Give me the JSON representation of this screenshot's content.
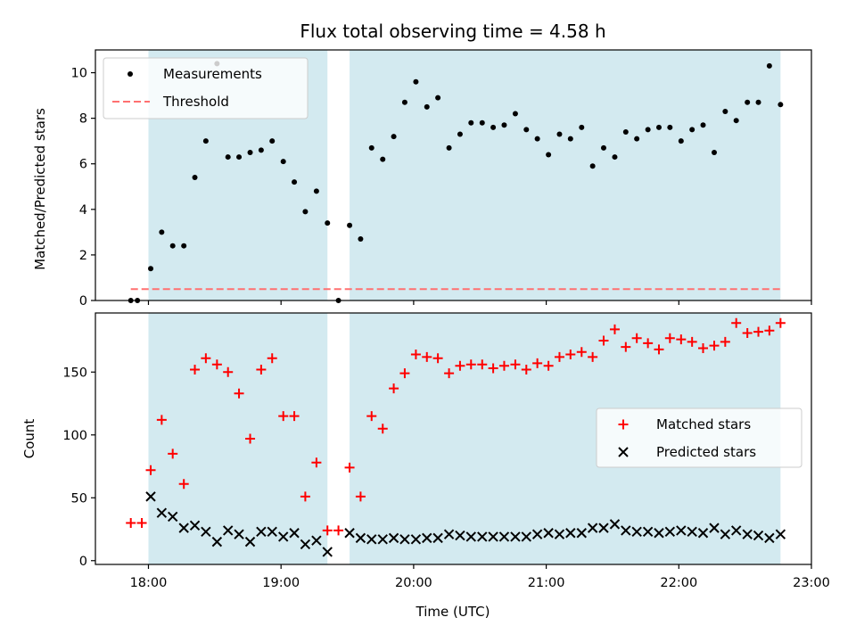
{
  "chart_data": [
    {
      "type": "scatter",
      "title": "Flux total observing time = 4.58 h",
      "xlabel": "",
      "ylabel": "Matched/Predicted stars",
      "xlim": [
        17.6,
        23.0
      ],
      "ylim": [
        0,
        11
      ],
      "yticks": [
        0,
        2,
        4,
        6,
        8,
        10
      ],
      "legend_position": "upper-left",
      "series": [
        {
          "name": "Measurements",
          "marker": "dot",
          "color": "#000000",
          "x": [
            17.867,
            17.917,
            18.017,
            18.1,
            18.183,
            18.267,
            18.35,
            18.433,
            18.517,
            18.6,
            18.683,
            18.767,
            18.85,
            18.933,
            19.017,
            19.1,
            19.183,
            19.267,
            19.35,
            19.433,
            19.517,
            19.6,
            19.683,
            19.767,
            19.85,
            19.933,
            20.017,
            20.1,
            20.183,
            20.267,
            20.35,
            20.433,
            20.517,
            20.6,
            20.683,
            20.767,
            20.85,
            20.933,
            21.017,
            21.1,
            21.183,
            21.267,
            21.35,
            21.433,
            21.517,
            21.6,
            21.683,
            21.767,
            21.85,
            21.933,
            22.017,
            22.1,
            22.183,
            22.267,
            22.35,
            22.433,
            22.517,
            22.6,
            22.683,
            22.767
          ],
          "y": [
            0.0,
            0.0,
            1.4,
            3.0,
            2.4,
            2.4,
            5.4,
            7.0,
            10.4,
            6.3,
            6.3,
            6.5,
            6.6,
            7.0,
            6.1,
            5.2,
            3.9,
            4.8,
            3.4,
            0.0,
            3.3,
            2.7,
            6.7,
            6.2,
            7.2,
            8.7,
            9.6,
            8.5,
            8.9,
            6.7,
            7.3,
            7.8,
            7.8,
            7.6,
            7.7,
            8.2,
            7.5,
            7.1,
            6.4,
            7.3,
            7.1,
            7.6,
            5.9,
            6.7,
            6.3,
            7.4,
            7.1,
            7.5,
            7.6,
            7.6,
            7.0,
            7.5,
            7.7,
            6.5,
            8.3,
            7.9,
            8.7,
            8.7,
            10.3,
            8.6
          ]
        },
        {
          "name": "Threshold",
          "marker": "dashed-line",
          "color": "#ff7070",
          "x": [
            17.867,
            22.767
          ],
          "y": [
            0.5,
            0.5
          ]
        }
      ],
      "shaded_regions": [
        [
          18.0,
          19.35
        ],
        [
          19.517,
          22.767
        ]
      ],
      "shade_color": "#d3eaf0"
    },
    {
      "type": "scatter",
      "title": "",
      "xlabel": "Time (UTC)",
      "ylabel": "Count",
      "xlim": [
        17.6,
        23.0
      ],
      "ylim": [
        -3,
        197
      ],
      "xticks": [
        18,
        19,
        20,
        21,
        22,
        23
      ],
      "xtick_labels": [
        "18:00",
        "19:00",
        "20:00",
        "21:00",
        "22:00",
        "23:00"
      ],
      "yticks": [
        0,
        50,
        100,
        150
      ],
      "legend_position": "center-right",
      "series": [
        {
          "name": "Matched stars",
          "marker": "plus",
          "color": "#ff0000",
          "x": [
            17.867,
            17.95,
            18.017,
            18.1,
            18.183,
            18.267,
            18.35,
            18.433,
            18.517,
            18.6,
            18.683,
            18.767,
            18.85,
            18.933,
            19.017,
            19.1,
            19.183,
            19.267,
            19.35,
            19.433,
            19.517,
            19.6,
            19.683,
            19.767,
            19.85,
            19.933,
            20.017,
            20.1,
            20.183,
            20.267,
            20.35,
            20.433,
            20.517,
            20.6,
            20.683,
            20.767,
            20.85,
            20.933,
            21.017,
            21.1,
            21.183,
            21.267,
            21.35,
            21.433,
            21.517,
            21.6,
            21.683,
            21.767,
            21.85,
            21.933,
            22.017,
            22.1,
            22.183,
            22.267,
            22.35,
            22.433,
            22.517,
            22.6,
            22.683,
            22.767
          ],
          "y": [
            30,
            30,
            72,
            112,
            85,
            61,
            152,
            161,
            156,
            150,
            133,
            97,
            152,
            161,
            115,
            115,
            51,
            78,
            24,
            24,
            74,
            51,
            115,
            105,
            137,
            149,
            164,
            162,
            161,
            149,
            155,
            156,
            156,
            153,
            155,
            156,
            152,
            157,
            155,
            162,
            164,
            166,
            162,
            175,
            184,
            170,
            177,
            173,
            168,
            177,
            176,
            174,
            169,
            171,
            174,
            189,
            181,
            182,
            183,
            189
          ]
        },
        {
          "name": "Predicted stars",
          "marker": "x",
          "color": "#000000",
          "x": [
            18.017,
            18.1,
            18.183,
            18.267,
            18.35,
            18.433,
            18.517,
            18.6,
            18.683,
            18.767,
            18.85,
            18.933,
            19.017,
            19.1,
            19.183,
            19.267,
            19.35,
            19.517,
            19.6,
            19.683,
            19.767,
            19.85,
            19.933,
            20.017,
            20.1,
            20.183,
            20.267,
            20.35,
            20.433,
            20.517,
            20.6,
            20.683,
            20.767,
            20.85,
            20.933,
            21.017,
            21.1,
            21.183,
            21.267,
            21.35,
            21.433,
            21.517,
            21.6,
            21.683,
            21.767,
            21.85,
            21.933,
            22.017,
            22.1,
            22.183,
            22.267,
            22.35,
            22.433,
            22.517,
            22.6,
            22.683,
            22.767
          ],
          "y": [
            51,
            38,
            35,
            26,
            28,
            23,
            15,
            24,
            21,
            15,
            23,
            23,
            19,
            22,
            13,
            16,
            7,
            22,
            18,
            17,
            17,
            18,
            17,
            17,
            18,
            18,
            21,
            20,
            19,
            19,
            19,
            19,
            19,
            19,
            21,
            22,
            21,
            22,
            22,
            26,
            26,
            29,
            24,
            23,
            23,
            22,
            23,
            24,
            23,
            22,
            26,
            21,
            24,
            21,
            20,
            18,
            21
          ]
        }
      ],
      "shaded_regions": [
        [
          18.0,
          19.35
        ],
        [
          19.517,
          22.767
        ]
      ],
      "shade_color": "#d3eaf0"
    }
  ]
}
